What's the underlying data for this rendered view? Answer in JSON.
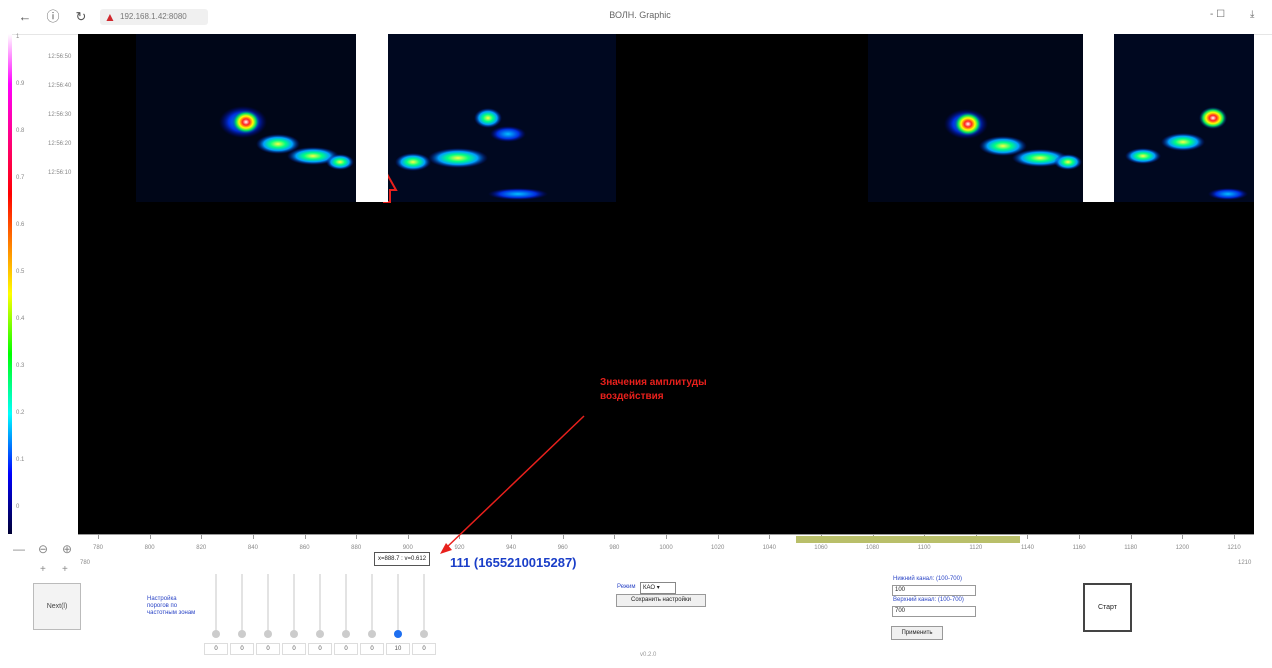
{
  "browser": {
    "back_icon": "arrow-left-icon",
    "info_icon": "info-icon",
    "reload_icon": "reload-icon",
    "warning_icon": "warning-icon",
    "url": "192.168.1.42:8080",
    "title": "ВОЛН. Graphic",
    "window_controls": "- ☐"
  },
  "colorbar": {
    "ticks": [
      "1",
      "0.9",
      "0.8",
      "0.7",
      "0.6",
      "0.5",
      "0.4",
      "0.3",
      "0.2",
      "0.1",
      "0"
    ]
  },
  "yaxis": {
    "ticks": [
      "12:56:50",
      "12:56:40",
      "12:56:30",
      "12:56:20",
      "12:56:10"
    ]
  },
  "xaxis": {
    "ticks": [
      "780",
      "800",
      "820",
      "840",
      "860",
      "880",
      "900",
      "920",
      "940",
      "960",
      "980",
      "1000",
      "1020",
      "1040",
      "1060",
      "1080",
      "1100",
      "1120",
      "1140",
      "1160",
      "1180",
      "1200",
      "1210"
    ],
    "left_label": "780",
    "right_label": "1210"
  },
  "tooltip": "x=888.7 : v=0.612",
  "selected_id": "111 (1655210015287)",
  "annotation": {
    "line1": "Значения амплитуды",
    "line2": "воздействия"
  },
  "zoom": {
    "out_icon": "zoom-out-icon",
    "reset_icon": "zoom-reset-icon",
    "in_icon": "zoom-in-icon",
    "plus_label": "+",
    "minus_label": "+"
  },
  "controls": {
    "next_button": "Next(l)",
    "sliders_label": "Настройка порогов по частотным зонам",
    "slider_values": [
      "0",
      "0",
      "0",
      "0",
      "0",
      "0",
      "0",
      "10",
      "0"
    ],
    "active_slider": 7,
    "mode_label": "Режим",
    "mode_value": "КАО",
    "save_button": "Сохранить настройки",
    "version": "v0.2.0",
    "lower_label": "Нижний канал: (100-700)",
    "lower_value": "100",
    "upper_label": "Верхний канал: (100-700)",
    "upper_value": "700",
    "apply_button": "Применить",
    "start_button": "Старт"
  }
}
